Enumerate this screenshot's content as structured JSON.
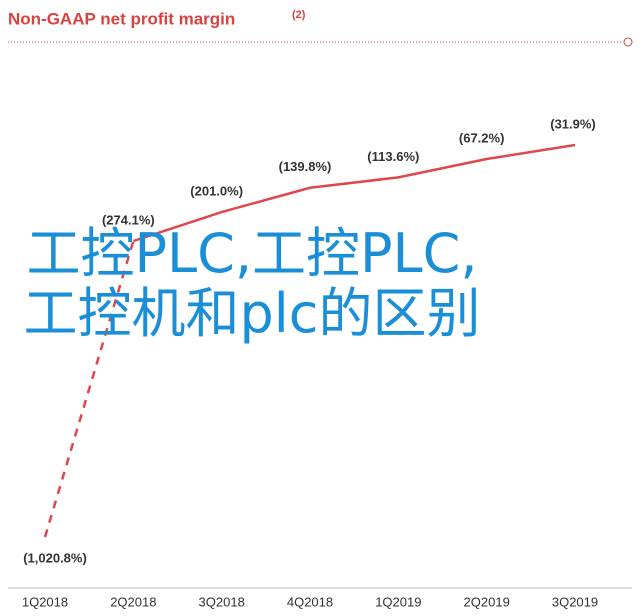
{
  "chart_data": {
    "type": "line",
    "title": "Non-GAAP net profit margin",
    "title_note": "(2)",
    "categories": [
      "1Q2018",
      "2Q2018",
      "3Q2018",
      "4Q2018",
      "1Q2019",
      "2Q2019",
      "3Q2019"
    ],
    "series": [
      {
        "name": "Non-GAAP net profit margin",
        "color": "#e0474c",
        "values": [
          -1020.8,
          -274.1,
          -201.0,
          -139.8,
          -113.6,
          -67.2,
          -31.9
        ],
        "value_labels": [
          "(1,020.8%)",
          "(274.1%)",
          "(201.0%)",
          "(139.8%)",
          "(113.6%)",
          "(67.2%)",
          "(31.9%)"
        ]
      }
    ],
    "dashed_segments": 1,
    "overlay_text": "工控PLC,工控PLC,工控机和plc的区别"
  }
}
